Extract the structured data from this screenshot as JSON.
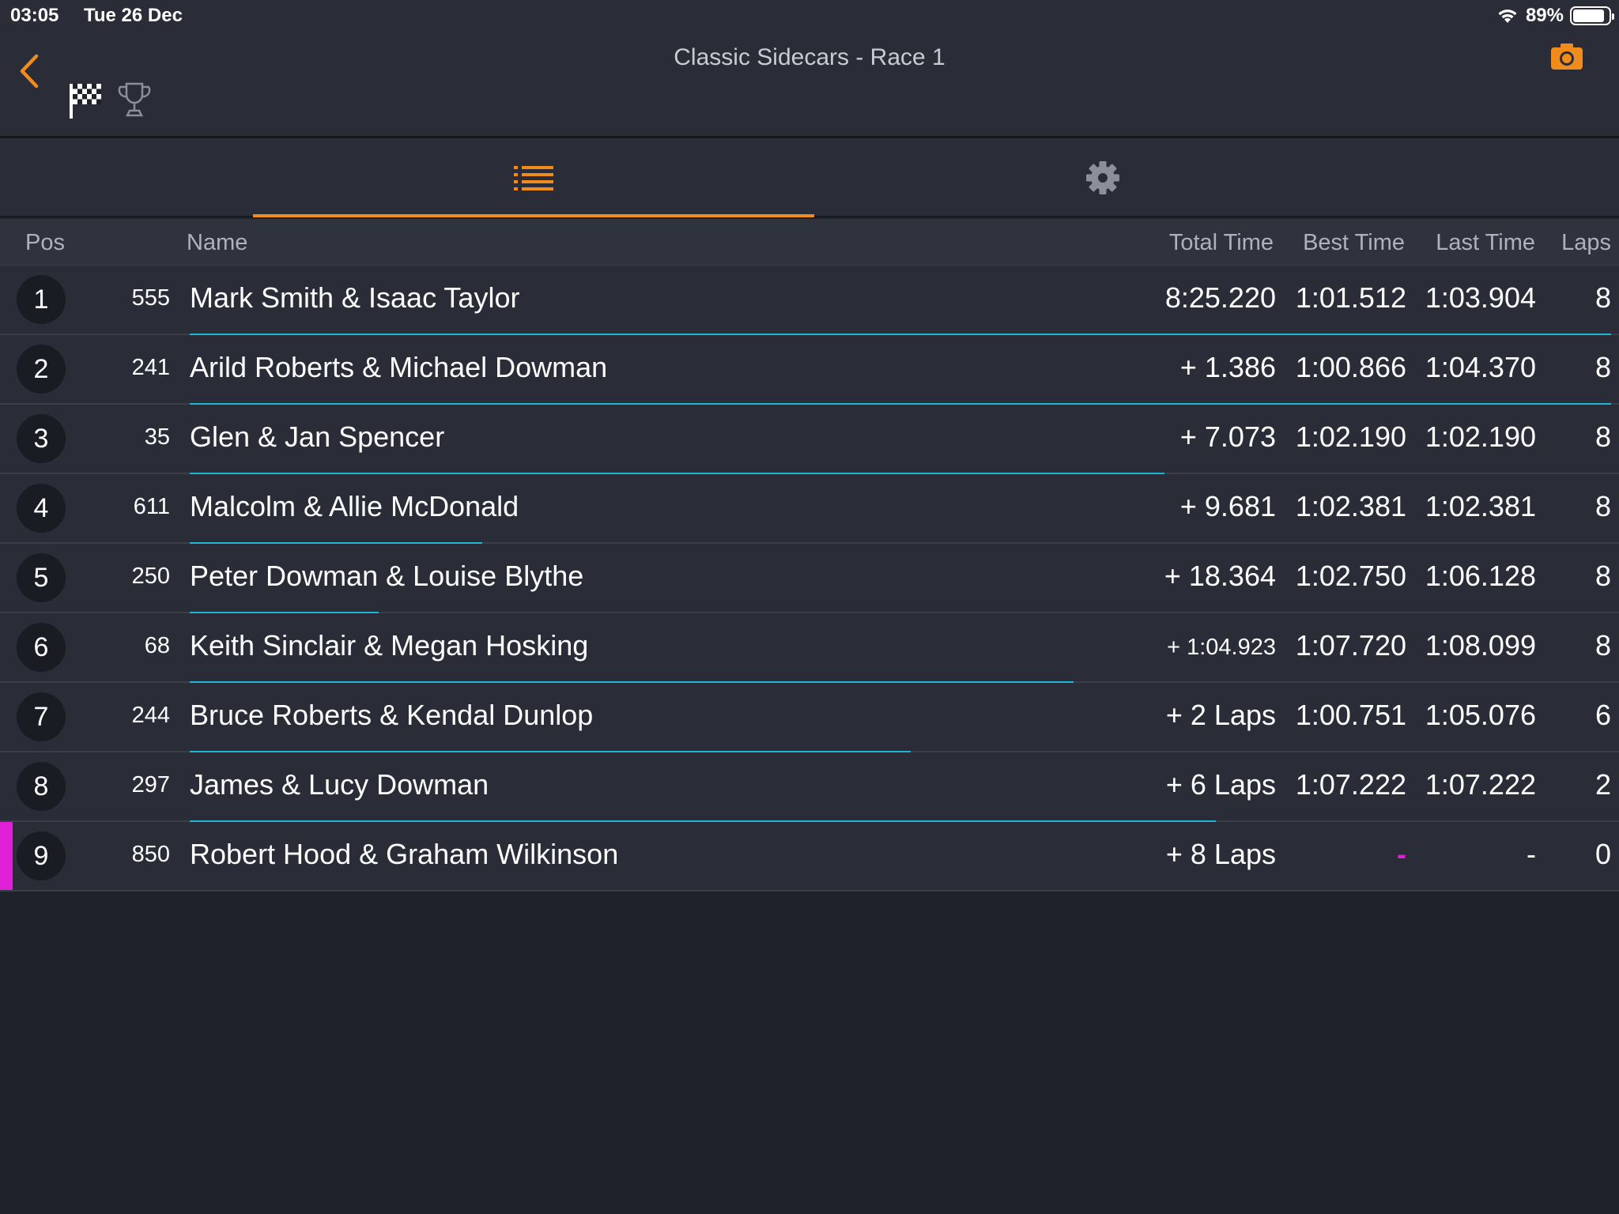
{
  "status_bar": {
    "time": "03:05",
    "date": "Tue 26 Dec",
    "battery_pct": "89%",
    "battery_level": 0.89
  },
  "header": {
    "title": "Classic Sidecars - Race 1"
  },
  "tabs": [
    {
      "name": "list",
      "icon": "list-icon",
      "active": true
    },
    {
      "name": "settings",
      "icon": "gear-icon",
      "active": false
    }
  ],
  "columns": {
    "pos": "Pos",
    "name": "Name",
    "total": "Total Time",
    "best": "Best Time",
    "last": "Last Time",
    "laps": "Laps"
  },
  "colors": {
    "accent": "#f08c1e",
    "progress": "#1fb6d4",
    "highlight": "#e020d8"
  },
  "rows": [
    {
      "pos": "1",
      "num": "555",
      "name": "Mark Smith & Isaac Taylor",
      "total": "8:25.220",
      "best": "1:01.512",
      "last": "1:03.904",
      "laps": "8",
      "progress": 1.0
    },
    {
      "pos": "2",
      "num": "241",
      "name": "Arild Roberts & Michael Dowman",
      "total": "+ 1.386",
      "best": "1:00.866",
      "last": "1:04.370",
      "laps": "8",
      "progress": 1.0
    },
    {
      "pos": "3",
      "num": "35",
      "name": "Glen & Jan Spencer",
      "total": "+ 7.073",
      "best": "1:02.190",
      "last": "1:02.190",
      "laps": "8",
      "progress": 0.686
    },
    {
      "pos": "4",
      "num": "611",
      "name": "Malcolm & Allie McDonald",
      "total": "+ 9.681",
      "best": "1:02.381",
      "last": "1:02.381",
      "laps": "8",
      "progress": 0.206
    },
    {
      "pos": "5",
      "num": "250",
      "name": "Peter Dowman & Louise Blythe",
      "total": "+ 18.364",
      "best": "1:02.750",
      "last": "1:06.128",
      "laps": "8",
      "progress": 0.133
    },
    {
      "pos": "6",
      "num": "68",
      "name": "Keith Sinclair & Megan Hosking",
      "total": "+ 1:04.923",
      "best": "1:07.720",
      "last": "1:08.099",
      "laps": "8",
      "progress": 0.622
    },
    {
      "pos": "7",
      "num": "244",
      "name": "Bruce Roberts & Kendal Dunlop",
      "total": "+ 2 Laps",
      "best": "1:00.751",
      "last": "1:05.076",
      "laps": "6",
      "progress": 0.507
    },
    {
      "pos": "8",
      "num": "297",
      "name": "James & Lucy Dowman",
      "total": "+ 6 Laps",
      "best": "1:07.222",
      "last": "1:07.222",
      "laps": "2",
      "progress": 0.722
    },
    {
      "pos": "9",
      "num": "850",
      "name": "Robert Hood & Graham Wilkinson",
      "total": "+ 8 Laps",
      "best": "-",
      "last": "-",
      "laps": "0",
      "progress": 0.0,
      "flagged": true
    }
  ]
}
